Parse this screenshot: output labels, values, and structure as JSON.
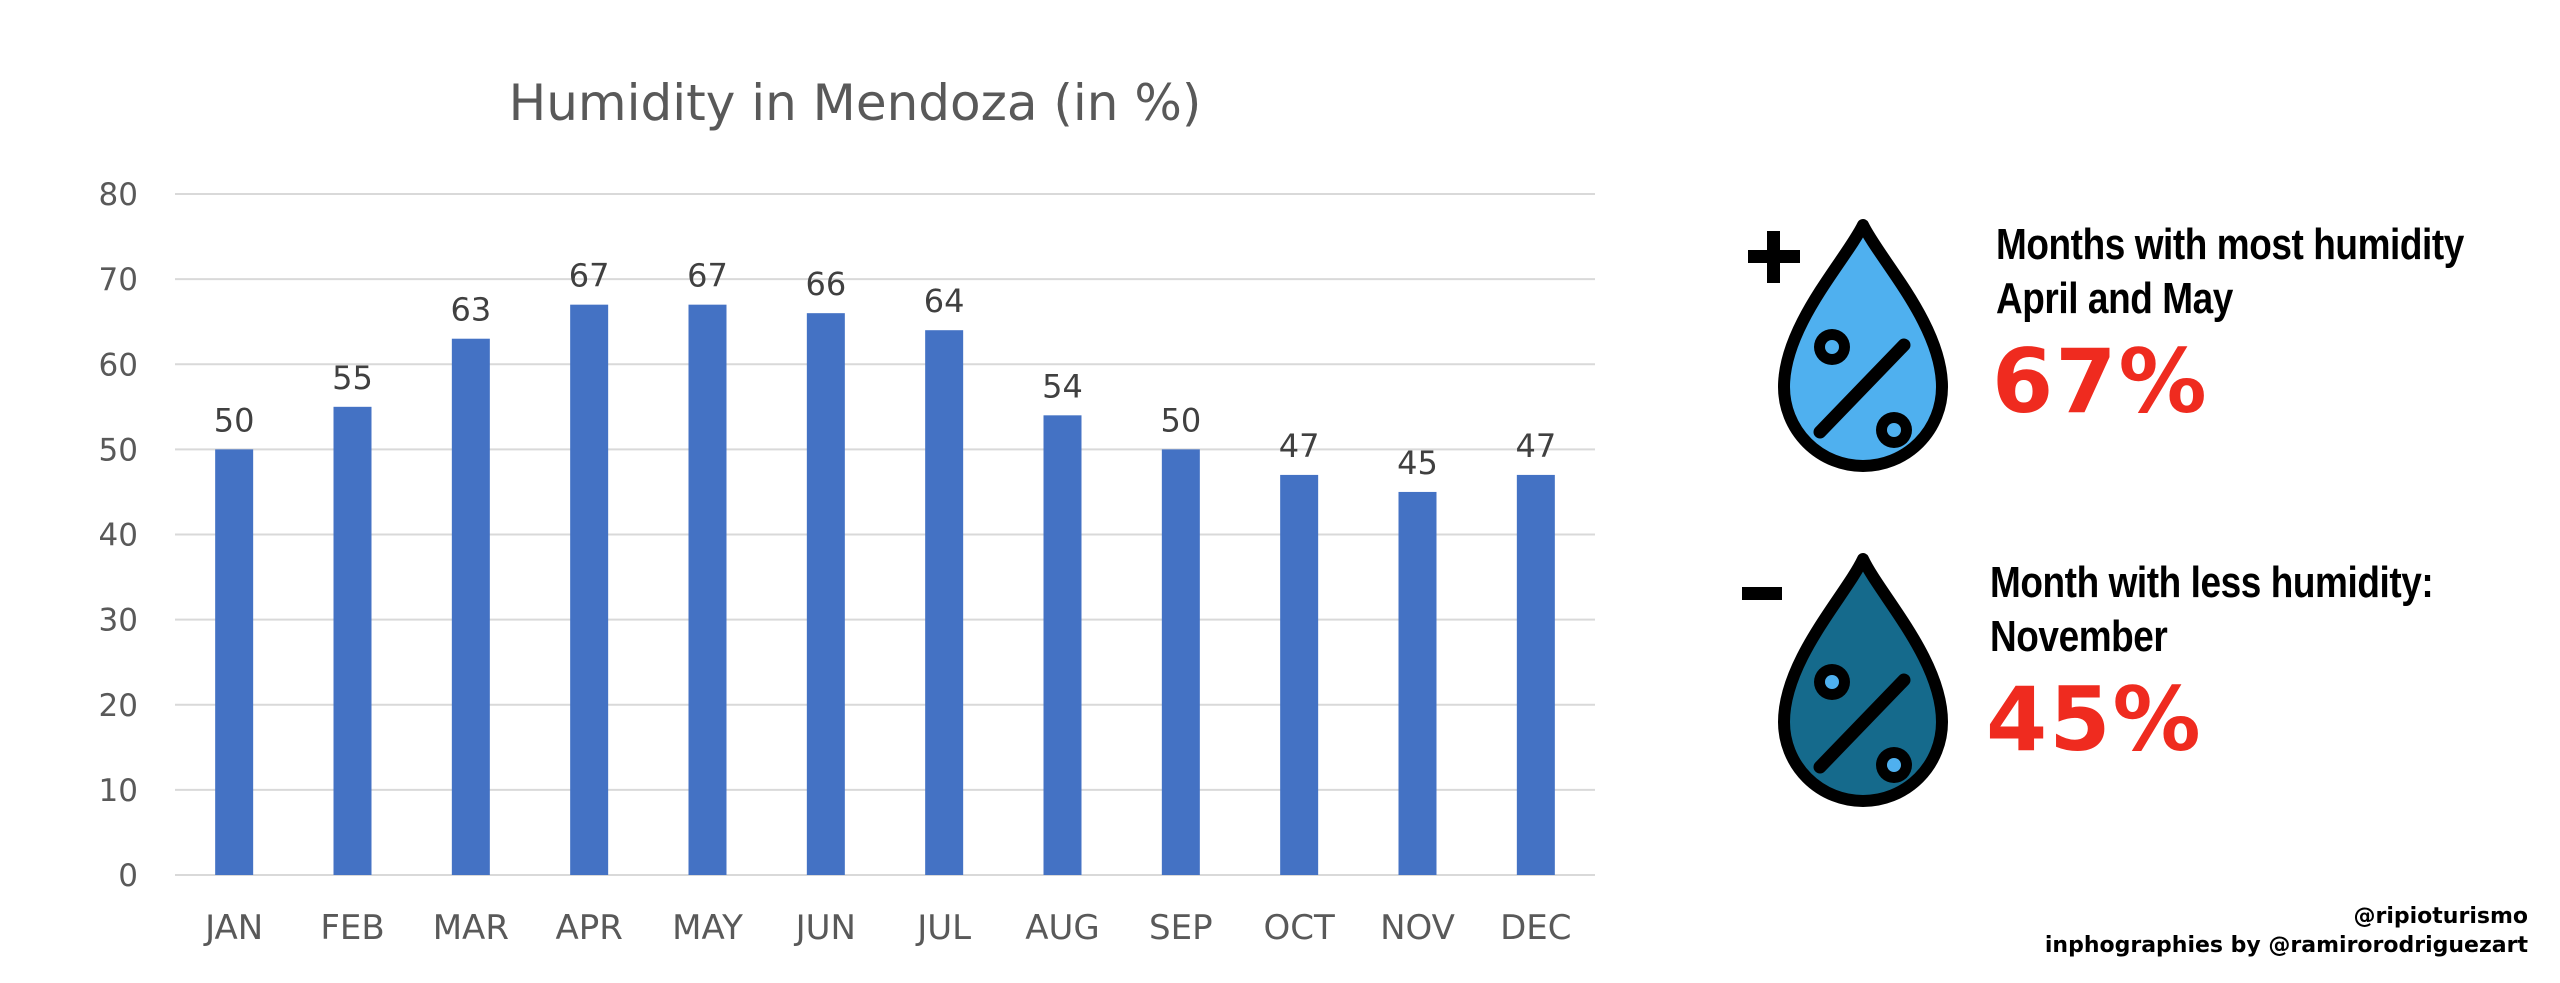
{
  "chart_data": {
    "type": "bar",
    "title": "Humidity in Mendoza (in %)",
    "categories": [
      "JAN",
      "FEB",
      "MAR",
      "APR",
      "MAY",
      "JUN",
      "JUL",
      "AUG",
      "SEP",
      "OCT",
      "NOV",
      "DEC"
    ],
    "values": [
      50,
      55,
      63,
      67,
      67,
      66,
      64,
      54,
      50,
      47,
      45,
      47
    ],
    "ylim": [
      0,
      80
    ],
    "yticks": [
      0,
      10,
      20,
      30,
      40,
      50,
      60,
      70,
      80
    ],
    "grid": true,
    "data_labels": true,
    "bar_color": "#4472c4"
  },
  "most": {
    "heading_line1": "Months with most humidity",
    "heading_line2": "April and May",
    "value": "67%",
    "sign": "+",
    "icon": "percent-drop-icon",
    "drop_color": "#4fb0ef"
  },
  "least": {
    "heading_line1": "Month with less humidity:",
    "heading_line2": "November",
    "value": "45%",
    "sign": "-",
    "icon": "percent-drop-icon",
    "drop_color": "#156a8c"
  },
  "credits": {
    "handle": "@ripioturismo",
    "author": "inphographies by @ramirorodriguezart"
  },
  "colors": {
    "accent_red": "#ef2b1f"
  }
}
